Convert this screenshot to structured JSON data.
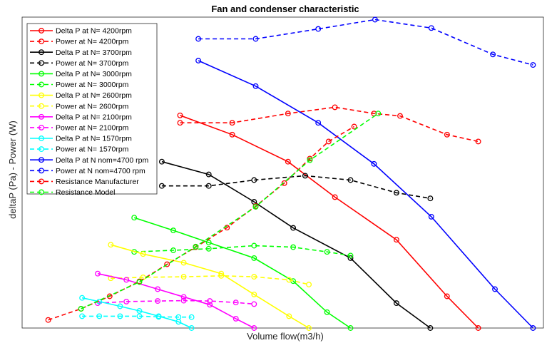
{
  "chart_data": {
    "type": "line",
    "title": "Fan and condenser characteristic",
    "xlabel": "Volume flow(m3/h)",
    "ylabel": "deltaP (Pa) - Power (W)",
    "grid": false,
    "legend_position": "top-left",
    "xlim": [
      0,
      1000
    ],
    "ylim": [
      0,
      1000
    ],
    "series": [
      {
        "name": "Delta P at N= 4200rpm",
        "color": "#ff0000",
        "dash": false,
        "x": [
          303,
          403,
          510,
          600,
          718,
          815,
          875
        ],
        "y": [
          684,
          622,
          535,
          421,
          284,
          102,
          0
        ]
      },
      {
        "name": "Power at N= 4200rpm",
        "color": "#ff0000",
        "dash": true,
        "x": [
          303,
          403,
          510,
          600,
          675,
          725,
          815,
          875
        ],
        "y": [
          660,
          660,
          690,
          710,
          690,
          682,
          622,
          600
        ]
      },
      {
        "name": "Delta P at N= 3700rpm",
        "color": "#000000",
        "dash": false,
        "x": [
          268,
          358,
          445,
          520,
          630,
          718,
          783
        ],
        "y": [
          535,
          494,
          406,
          322,
          225,
          80,
          0
        ]
      },
      {
        "name": "Power at N= 3700rpm",
        "color": "#000000",
        "dash": true,
        "x": [
          268,
          358,
          445,
          543,
          630,
          718,
          783
        ],
        "y": [
          457,
          457,
          476,
          490,
          476,
          435,
          417
        ]
      },
      {
        "name": "Delta P at N= 3000rpm",
        "color": "#00ff00",
        "dash": false,
        "x": [
          215,
          290,
          358,
          445,
          520,
          585,
          630
        ],
        "y": [
          355,
          314,
          275,
          225,
          151,
          51,
          0
        ]
      },
      {
        "name": "Power at N= 3000rpm",
        "color": "#00ff00",
        "dash": true,
        "x": [
          215,
          290,
          358,
          445,
          520,
          585,
          630
        ],
        "y": [
          245,
          250,
          255,
          265,
          260,
          245,
          233
        ]
      },
      {
        "name": "Delta P at N= 2600rpm",
        "color": "#ffff00",
        "dash": false,
        "x": [
          170,
          232,
          310,
          382,
          445,
          512,
          550
        ],
        "y": [
          268,
          238,
          210,
          175,
          108,
          38,
          0
        ]
      },
      {
        "name": "Power at N= 2600rpm",
        "color": "#ffff00",
        "dash": true,
        "x": [
          170,
          232,
          310,
          382,
          445,
          512,
          550
        ],
        "y": [
          160,
          163,
          165,
          168,
          165,
          155,
          140
        ]
      },
      {
        "name": "Delta P at N= 2100rpm",
        "color": "#ff00ff",
        "dash": false,
        "x": [
          145,
          200,
          260,
          310,
          360,
          410,
          445
        ],
        "y": [
          175,
          155,
          125,
          100,
          75,
          30,
          0
        ]
      },
      {
        "name": "Power at N= 2100rpm",
        "color": "#ff00ff",
        "dash": true,
        "x": [
          145,
          200,
          260,
          310,
          360,
          410,
          445
        ],
        "y": [
          80,
          85,
          87,
          88,
          87,
          82,
          77
        ]
      },
      {
        "name": "Delta P at N= 1570rpm",
        "color": "#00ffff",
        "dash": false,
        "x": [
          115,
          148,
          188,
          225,
          262,
          300,
          325
        ],
        "y": [
          97,
          85,
          70,
          55,
          38,
          20,
          0
        ]
      },
      {
        "name": "Power at N= 1570rpm",
        "color": "#00ffff",
        "dash": true,
        "x": [
          115,
          148,
          188,
          225,
          262,
          300,
          325
        ],
        "y": [
          38,
          38,
          38,
          38,
          36,
          35,
          35
        ]
      },
      {
        "name": "Delta P at N nom=4700 rpm",
        "color": "#0000ff",
        "dash": false,
        "x": [
          338,
          448,
          568,
          675,
          785,
          907,
          980
        ],
        "y": [
          860,
          778,
          660,
          528,
          358,
          125,
          0
        ]
      },
      {
        "name": "Power at N nom=4700 rpm",
        "color": "#0000ff",
        "dash": true,
        "x": [
          338,
          448,
          568,
          677,
          785,
          903,
          980
        ],
        "y": [
          930,
          930,
          962,
          992,
          965,
          880,
          846
        ]
      },
      {
        "name": "Resistance Manufacturer",
        "color": "#ff0000",
        "dash": true,
        "x": [
          50,
          113,
          168,
          225,
          278,
          333,
          393,
          448,
          503,
          552,
          588,
          637
        ],
        "y": [
          26,
          62,
          102,
          150,
          205,
          260,
          323,
          392,
          466,
          545,
          600,
          648
        ]
      },
      {
        "name": "Resistance Model",
        "color": "#00ff00",
        "dash": true,
        "x": [
          113,
          225,
          333,
          448,
          552,
          683
        ],
        "y": [
          62,
          148,
          262,
          390,
          540,
          690
        ]
      }
    ]
  }
}
